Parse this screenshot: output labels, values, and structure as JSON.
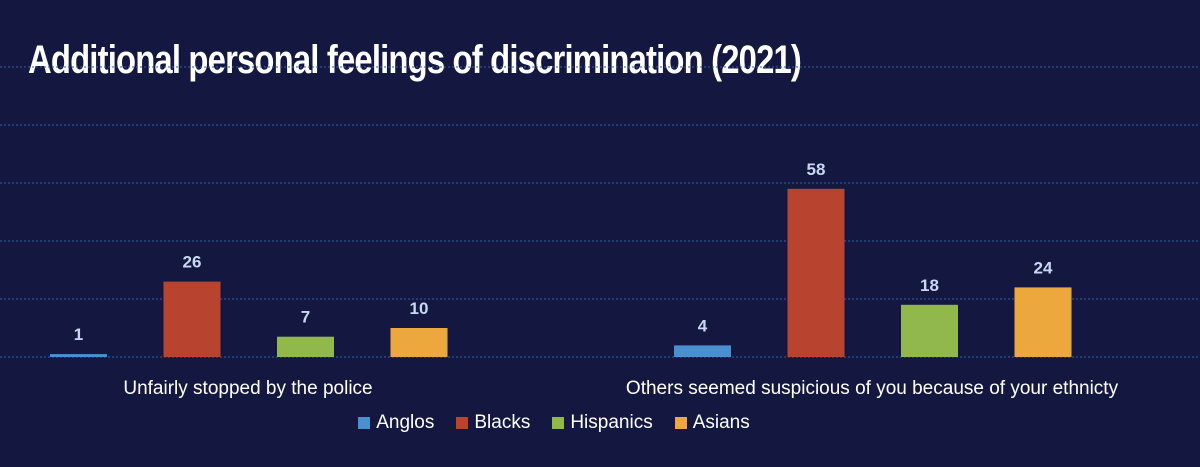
{
  "chart_data": {
    "type": "bar",
    "title": "Additional personal feelings of discrimination (2021)",
    "categories": [
      "Unfairly stopped by the police",
      "Others seemed suspicious of you because of your ethnicty"
    ],
    "series": [
      {
        "name": "Anglos",
        "values": [
          1,
          4
        ],
        "color": "#4a90d0"
      },
      {
        "name": "Blacks",
        "values": [
          26,
          58
        ],
        "color": "#b84430"
      },
      {
        "name": "Hispanics",
        "values": [
          7,
          18
        ],
        "color": "#90b84c"
      },
      {
        "name": "Asians",
        "values": [
          10,
          24
        ],
        "color": "#eca83c"
      }
    ],
    "ylim": [
      0,
      100
    ],
    "grid": true,
    "legend": "bottom"
  }
}
